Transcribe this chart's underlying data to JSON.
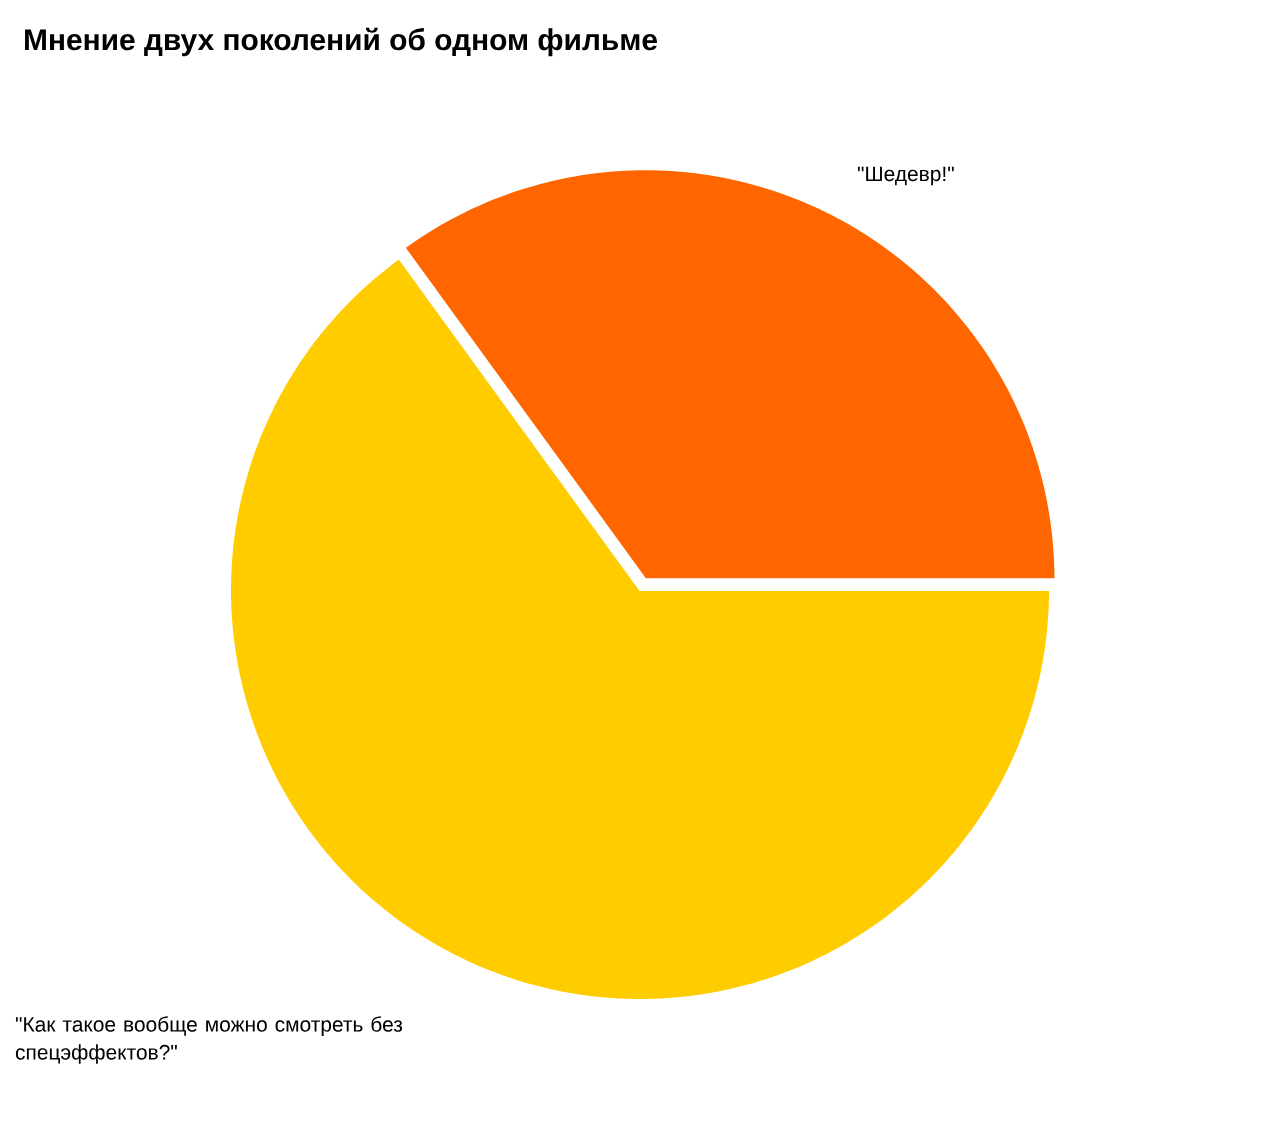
{
  "chart_data": {
    "type": "pie",
    "title": "Мнение двух поколений об одном фильме",
    "categories": [
      "\"Шедевр!\"",
      "\"Как такое вообще можно смотреть без спецэффектов?\""
    ],
    "values": [
      35,
      65
    ],
    "colors": [
      "#ff6600",
      "#ffcc00"
    ]
  }
}
